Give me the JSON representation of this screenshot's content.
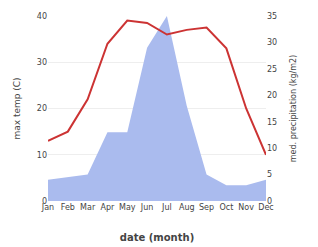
{
  "chart_data": {
    "type": "line",
    "xlabel": "date (month)",
    "ylabel": "max temp (C)",
    "y2label": "med. precipitation (kg/m2)",
    "categories": [
      "Jan",
      "Feb",
      "Mar",
      "Apr",
      "May",
      "Jun",
      "Jul",
      "Aug",
      "Sep",
      "Oct",
      "Nov",
      "Dec"
    ],
    "series": [
      {
        "type": "area",
        "axis": "y2",
        "color": "#aabbee",
        "values": [
          4,
          4.5,
          5,
          13,
          13,
          29,
          35,
          18,
          5,
          3,
          3,
          4
        ]
      },
      {
        "type": "line",
        "color": "#cc3333",
        "values": [
          13,
          15,
          22,
          34,
          39,
          38.5,
          36,
          37,
          37.5,
          33,
          20,
          10
        ]
      }
    ],
    "ylim": [
      0,
      40
    ],
    "yticks": [
      0,
      10,
      20,
      30,
      40
    ],
    "y2lim": [
      0,
      35
    ],
    "y2ticks": [
      0,
      5,
      10,
      15,
      20,
      25,
      30,
      35
    ],
    "grid": true
  }
}
